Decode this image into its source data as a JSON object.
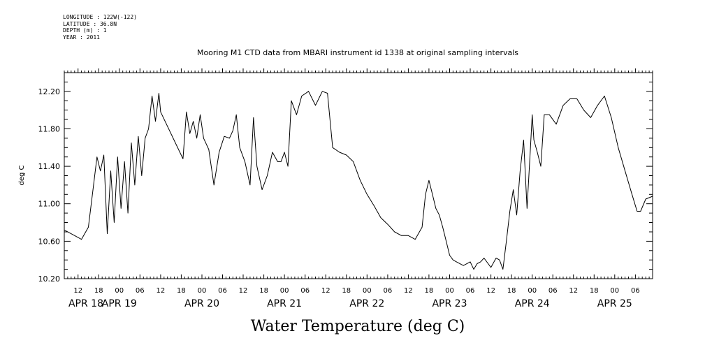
{
  "header": {
    "longitude": "LONGITUDE : 122W(-122)",
    "latitude": "LATITUDE : 36.8N",
    "depth": "DEPTH (m) : 1",
    "year": "YEAR : 2011"
  },
  "footer_label": "Water Temperature (deg C)",
  "chart_data": {
    "type": "line",
    "title": "Mooring M1 CTD data from MBARI instrument id 1338 at original sampling intervals",
    "xlabel": "",
    "ylabel": "deg C",
    "ylim": [
      10.2,
      12.4
    ],
    "y_ticks": [
      "10.20",
      "10.60",
      "11.00",
      "11.40",
      "11.80",
      "12.20"
    ],
    "xlim": [
      "2011-04-18 08:00",
      "2011-04-25 11:00"
    ],
    "hour_ticks": [
      "12",
      "18",
      "00",
      "06",
      "12",
      "18",
      "00",
      "06",
      "12",
      "18",
      "00",
      "06",
      "12",
      "18",
      "00",
      "06",
      "12",
      "18",
      "00",
      "06",
      "12",
      "18",
      "00",
      "06",
      "12",
      "18",
      "00",
      "06"
    ],
    "date_ticks": [
      "APR 18",
      "APR 19",
      "APR 20",
      "APR 21",
      "APR 22",
      "APR 23",
      "APR 24",
      "APR 25"
    ],
    "grid": false,
    "line_color": "#000000",
    "series": [
      {
        "x": [
          "2011-04-18 08:00",
          "2011-04-18 11:00",
          "2011-04-18 13:00",
          "2011-04-18 15:00",
          "2011-04-18 16:30",
          "2011-04-18 17:30",
          "2011-04-18 18:30",
          "2011-04-18 19:30",
          "2011-04-18 20:30",
          "2011-04-18 21:30",
          "2011-04-18 22:30",
          "2011-04-18 23:30",
          "2011-04-19 00:30",
          "2011-04-19 01:30",
          "2011-04-19 02:30",
          "2011-04-19 03:30",
          "2011-04-19 04:30",
          "2011-04-19 05:30",
          "2011-04-19 06:30",
          "2011-04-19 07:30",
          "2011-04-19 08:30",
          "2011-04-19 09:30",
          "2011-04-19 10:30",
          "2011-04-19 11:30",
          "2011-04-19 12:00",
          "2011-04-19 18:30",
          "2011-04-19 19:30",
          "2011-04-19 20:30",
          "2011-04-19 21:30",
          "2011-04-19 22:30",
          "2011-04-19 23:30",
          "2011-04-20 00:30",
          "2011-04-20 02:00",
          "2011-04-20 03:30",
          "2011-04-20 05:00",
          "2011-04-20 06:30",
          "2011-04-20 08:00",
          "2011-04-20 09:00",
          "2011-04-20 10:00",
          "2011-04-20 11:00",
          "2011-04-20 12:30",
          "2011-04-20 14:00",
          "2011-04-20 15:00",
          "2011-04-20 16:00",
          "2011-04-20 17:30",
          "2011-04-20 19:00",
          "2011-04-20 20:30",
          "2011-04-20 22:00",
          "2011-04-20 23:00",
          "2011-04-21 00:00",
          "2011-04-21 01:00",
          "2011-04-21 02:00",
          "2011-04-21 03:30",
          "2011-04-21 05:00",
          "2011-04-21 07:00",
          "2011-04-21 09:00",
          "2011-04-21 11:00",
          "2011-04-21 12:30",
          "2011-04-21 14:00",
          "2011-04-21 16:00",
          "2011-04-21 18:00",
          "2011-04-21 20:00",
          "2011-04-21 22:00",
          "2011-04-22 00:00",
          "2011-04-22 02:00",
          "2011-04-22 04:00",
          "2011-04-22 06:00",
          "2011-04-22 08:00",
          "2011-04-22 10:00",
          "2011-04-22 12:00",
          "2011-04-22 14:00",
          "2011-04-22 16:00",
          "2011-04-22 17:00",
          "2011-04-22 18:00",
          "2011-04-22 19:00",
          "2011-04-22 20:00",
          "2011-04-22 21:00",
          "2011-04-22 22:00",
          "2011-04-22 23:00",
          "2011-04-23 00:00",
          "2011-04-23 01:00",
          "2011-04-23 02:00",
          "2011-04-23 04:00",
          "2011-04-23 06:00",
          "2011-04-23 07:00",
          "2011-04-23 08:00",
          "2011-04-23 09:00",
          "2011-04-23 10:00",
          "2011-04-23 12:00",
          "2011-04-23 13:30",
          "2011-04-23 14:30",
          "2011-04-23 15:30",
          "2011-04-23 16:30",
          "2011-04-23 17:30",
          "2011-04-23 18:30",
          "2011-04-23 19:30",
          "2011-04-23 20:30",
          "2011-04-23 21:30",
          "2011-04-23 22:30",
          "2011-04-23 23:30",
          "2011-04-24 00:00",
          "2011-04-24 00:30",
          "2011-04-24 01:30",
          "2011-04-24 02:30",
          "2011-04-24 03:30",
          "2011-04-24 05:00",
          "2011-04-24 07:00",
          "2011-04-24 09:00",
          "2011-04-24 11:00",
          "2011-04-24 13:00",
          "2011-04-24 15:00",
          "2011-04-24 17:00",
          "2011-04-24 19:00",
          "2011-04-24 21:00",
          "2011-04-24 23:00",
          "2011-04-25 01:00",
          "2011-04-25 03:00",
          "2011-04-25 05:00",
          "2011-04-25 06:30",
          "2011-04-25 07:30",
          "2011-04-25 09:00",
          "2011-04-25 11:00"
        ],
        "y": [
          10.72,
          10.66,
          10.62,
          10.75,
          11.2,
          11.5,
          11.35,
          11.52,
          10.68,
          11.35,
          10.8,
          11.5,
          10.95,
          11.45,
          10.9,
          11.65,
          11.2,
          11.72,
          11.3,
          11.7,
          11.8,
          12.15,
          11.88,
          12.18,
          11.98,
          11.48,
          11.98,
          11.75,
          11.88,
          11.7,
          11.95,
          11.7,
          11.58,
          11.2,
          11.55,
          11.72,
          11.7,
          11.78,
          11.95,
          11.6,
          11.45,
          11.2,
          11.92,
          11.4,
          11.15,
          11.3,
          11.55,
          11.45,
          11.45,
          11.55,
          11.4,
          12.1,
          11.95,
          12.15,
          12.2,
          12.05,
          12.2,
          12.18,
          11.6,
          11.55,
          11.52,
          11.45,
          11.25,
          11.1,
          10.98,
          10.85,
          10.78,
          10.7,
          10.66,
          10.66,
          10.62,
          10.75,
          11.1,
          11.25,
          11.1,
          10.95,
          10.88,
          10.75,
          10.6,
          10.45,
          10.4,
          10.38,
          10.34,
          10.38,
          10.3,
          10.36,
          10.38,
          10.42,
          10.32,
          10.42,
          10.4,
          10.3,
          10.6,
          10.92,
          11.15,
          10.88,
          11.35,
          11.68,
          10.95,
          11.6,
          11.95,
          11.68,
          11.55,
          11.4,
          11.95,
          11.95,
          11.85,
          12.05,
          12.12,
          12.12,
          12.0,
          11.92,
          12.05,
          12.15,
          11.92,
          11.6,
          11.35,
          11.1,
          10.92,
          10.92,
          11.05,
          11.08
        ]
      }
    ]
  }
}
